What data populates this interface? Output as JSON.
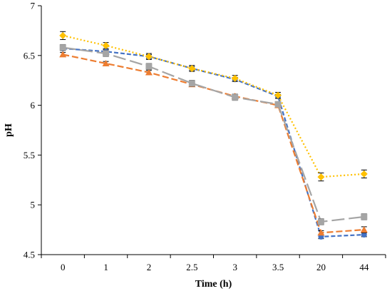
{
  "chart_data": {
    "type": "line",
    "title": "",
    "xlabel": "Time (h)",
    "ylabel": "pH",
    "categories": [
      "0",
      "1",
      "2",
      "2.5",
      "3",
      "3.5",
      "20",
      "44"
    ],
    "ylim": [
      4.5,
      7
    ],
    "yticks": [
      4.5,
      5,
      5.5,
      6,
      6.5,
      7
    ],
    "grid": false,
    "legend": "none",
    "series": [
      {
        "color": "#4472C4",
        "marker": "circle",
        "dash": "short-dash",
        "values": [
          6.57,
          6.54,
          6.49,
          6.37,
          6.26,
          6.09,
          4.68,
          4.7
        ],
        "errors": [
          0.02,
          0.02,
          0.02,
          0.02,
          0.02,
          0.02,
          0.02,
          0.02
        ]
      },
      {
        "color": "#ED7D31",
        "marker": "triangle",
        "dash": "dash",
        "values": [
          6.51,
          6.42,
          6.33,
          6.21,
          6.09,
          6.0,
          4.72,
          4.75
        ],
        "errors": [
          0.02,
          0.02,
          0.02,
          0.02,
          0.02,
          0.02,
          0.02,
          0.03
        ]
      },
      {
        "color": "#A5A5A5",
        "marker": "square",
        "dash": "long-dash",
        "values": [
          6.58,
          6.52,
          6.39,
          6.22,
          6.08,
          6.01,
          4.83,
          4.88
        ],
        "errors": [
          0.03,
          0.03,
          0.03,
          0.03,
          0.03,
          0.02,
          0.03,
          0.03
        ]
      },
      {
        "color": "#FFC000",
        "marker": "diamond",
        "dash": "dot",
        "values": [
          6.7,
          6.6,
          6.49,
          6.37,
          6.27,
          6.1,
          5.28,
          5.31
        ],
        "errors": [
          0.04,
          0.03,
          0.03,
          0.03,
          0.03,
          0.03,
          0.04,
          0.04
        ]
      }
    ]
  }
}
